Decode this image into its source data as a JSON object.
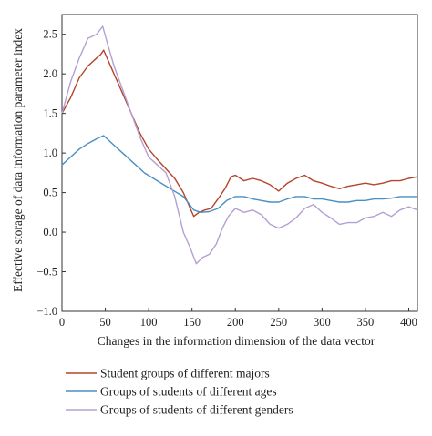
{
  "chart_data": {
    "type": "line",
    "title": "",
    "xlabel": "Changes in the information dimension of the data vector",
    "ylabel": "Effective storage of data information parameter index",
    "xlim": [
      0,
      410
    ],
    "ylim": [
      -1.0,
      2.75
    ],
    "xticks": [
      0,
      50,
      100,
      150,
      200,
      250,
      300,
      350,
      400
    ],
    "yticks": [
      -1.0,
      -0.5,
      0.0,
      0.5,
      1.0,
      1.5,
      2.0,
      2.5
    ],
    "xtick_labels": [
      "0",
      "50",
      "100",
      "150",
      "200",
      "250",
      "300",
      "350",
      "400"
    ],
    "ytick_labels": [
      "−1.0",
      "−0.5",
      "0.0",
      "0.5",
      "1.0",
      "1.5",
      "2.0",
      "2.5"
    ],
    "grid": false,
    "legend_position": "below",
    "series": [
      {
        "name": "Student groups of different majors",
        "color": "#b5442c",
        "points": [
          [
            0,
            1.5
          ],
          [
            10,
            1.7
          ],
          [
            20,
            1.95
          ],
          [
            30,
            2.1
          ],
          [
            40,
            2.2
          ],
          [
            45,
            2.25
          ],
          [
            48,
            2.3
          ],
          [
            52,
            2.2
          ],
          [
            60,
            2.0
          ],
          [
            70,
            1.75
          ],
          [
            80,
            1.5
          ],
          [
            90,
            1.25
          ],
          [
            100,
            1.05
          ],
          [
            110,
            0.92
          ],
          [
            120,
            0.8
          ],
          [
            130,
            0.68
          ],
          [
            140,
            0.5
          ],
          [
            148,
            0.3
          ],
          [
            152,
            0.2
          ],
          [
            158,
            0.25
          ],
          [
            165,
            0.28
          ],
          [
            172,
            0.3
          ],
          [
            180,
            0.42
          ],
          [
            188,
            0.55
          ],
          [
            195,
            0.7
          ],
          [
            200,
            0.72
          ],
          [
            210,
            0.65
          ],
          [
            220,
            0.68
          ],
          [
            230,
            0.65
          ],
          [
            240,
            0.6
          ],
          [
            250,
            0.52
          ],
          [
            260,
            0.62
          ],
          [
            270,
            0.68
          ],
          [
            280,
            0.72
          ],
          [
            290,
            0.65
          ],
          [
            300,
            0.62
          ],
          [
            310,
            0.58
          ],
          [
            320,
            0.55
          ],
          [
            330,
            0.58
          ],
          [
            340,
            0.6
          ],
          [
            350,
            0.62
          ],
          [
            360,
            0.6
          ],
          [
            370,
            0.62
          ],
          [
            380,
            0.65
          ],
          [
            390,
            0.65
          ],
          [
            400,
            0.68
          ],
          [
            410,
            0.7
          ]
        ]
      },
      {
        "name": "Groups of students of different ages",
        "color": "#4a8fc4",
        "points": [
          [
            0,
            0.85
          ],
          [
            10,
            0.95
          ],
          [
            20,
            1.05
          ],
          [
            30,
            1.12
          ],
          [
            40,
            1.18
          ],
          [
            48,
            1.22
          ],
          [
            55,
            1.15
          ],
          [
            65,
            1.05
          ],
          [
            80,
            0.9
          ],
          [
            95,
            0.75
          ],
          [
            110,
            0.65
          ],
          [
            125,
            0.55
          ],
          [
            140,
            0.45
          ],
          [
            152,
            0.28
          ],
          [
            160,
            0.25
          ],
          [
            170,
            0.26
          ],
          [
            180,
            0.3
          ],
          [
            190,
            0.4
          ],
          [
            200,
            0.45
          ],
          [
            210,
            0.45
          ],
          [
            220,
            0.42
          ],
          [
            230,
            0.4
          ],
          [
            240,
            0.38
          ],
          [
            250,
            0.38
          ],
          [
            260,
            0.42
          ],
          [
            270,
            0.45
          ],
          [
            280,
            0.45
          ],
          [
            290,
            0.42
          ],
          [
            300,
            0.42
          ],
          [
            310,
            0.4
          ],
          [
            320,
            0.38
          ],
          [
            330,
            0.38
          ],
          [
            340,
            0.4
          ],
          [
            350,
            0.4
          ],
          [
            360,
            0.42
          ],
          [
            370,
            0.42
          ],
          [
            380,
            0.43
          ],
          [
            390,
            0.45
          ],
          [
            400,
            0.45
          ],
          [
            410,
            0.45
          ]
        ]
      },
      {
        "name": "Groups of students of different genders",
        "color": "#b3a0d3",
        "points": [
          [
            0,
            1.5
          ],
          [
            10,
            1.9
          ],
          [
            20,
            2.2
          ],
          [
            30,
            2.45
          ],
          [
            40,
            2.5
          ],
          [
            47,
            2.6
          ],
          [
            52,
            2.4
          ],
          [
            60,
            2.1
          ],
          [
            70,
            1.8
          ],
          [
            80,
            1.5
          ],
          [
            90,
            1.2
          ],
          [
            100,
            0.95
          ],
          [
            110,
            0.85
          ],
          [
            120,
            0.75
          ],
          [
            130,
            0.45
          ],
          [
            140,
            0.0
          ],
          [
            148,
            -0.2
          ],
          [
            155,
            -0.4
          ],
          [
            162,
            -0.32
          ],
          [
            170,
            -0.28
          ],
          [
            178,
            -0.15
          ],
          [
            185,
            0.05
          ],
          [
            192,
            0.2
          ],
          [
            200,
            0.3
          ],
          [
            210,
            0.25
          ],
          [
            220,
            0.28
          ],
          [
            230,
            0.22
          ],
          [
            240,
            0.1
          ],
          [
            250,
            0.05
          ],
          [
            260,
            0.1
          ],
          [
            270,
            0.18
          ],
          [
            280,
            0.3
          ],
          [
            290,
            0.35
          ],
          [
            300,
            0.25
          ],
          [
            310,
            0.18
          ],
          [
            320,
            0.1
          ],
          [
            330,
            0.12
          ],
          [
            340,
            0.12
          ],
          [
            350,
            0.18
          ],
          [
            360,
            0.2
          ],
          [
            370,
            0.25
          ],
          [
            380,
            0.2
          ],
          [
            390,
            0.28
          ],
          [
            400,
            0.32
          ],
          [
            410,
            0.28
          ]
        ]
      }
    ]
  }
}
